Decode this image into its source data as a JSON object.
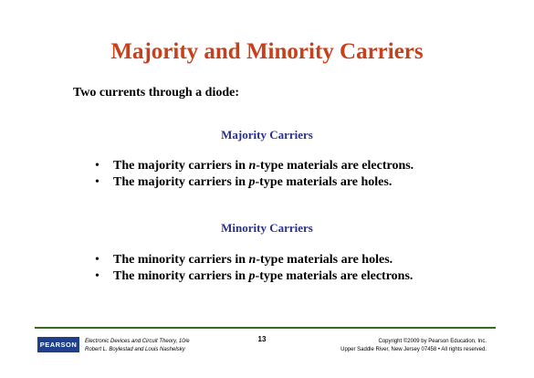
{
  "slide": {
    "title": "Majority and Minority Carriers",
    "intro": "Two currents through a diode:",
    "majority": {
      "heading": "Majority Carriers",
      "bullets": [
        {
          "before": "The majority carriers in ",
          "italic": "n",
          "after": "-type materials are electrons."
        },
        {
          "before": "The majority carriers in ",
          "italic": "p",
          "after": "-type materials are holes."
        }
      ]
    },
    "minority": {
      "heading": "Minority Carriers",
      "bullets": [
        {
          "before": "The minority carriers in ",
          "italic": "n",
          "after": "-type materials are holes."
        },
        {
          "before": "The minority carriers in ",
          "italic": "p",
          "after": "-type materials are electrons."
        }
      ]
    },
    "bullet_char": "•"
  },
  "footer": {
    "logo_text": "PEARSON",
    "book_line1": "Electronic Devices and Circuit Theory, 10/e",
    "book_line2": "Robert L. Boylestad and Louis Nashelsky",
    "page_number": "13",
    "copyright_line1": "Copyright ©2009 by Pearson Education, Inc.",
    "copyright_line2": "Upper Saddle River, New Jersey 07458 • All rights reserved."
  },
  "colors": {
    "title": "#c8401a",
    "section_heading": "#2a2f8a",
    "footer_rule": "#3a6a1e",
    "logo_bg": "#1f3f8a"
  }
}
